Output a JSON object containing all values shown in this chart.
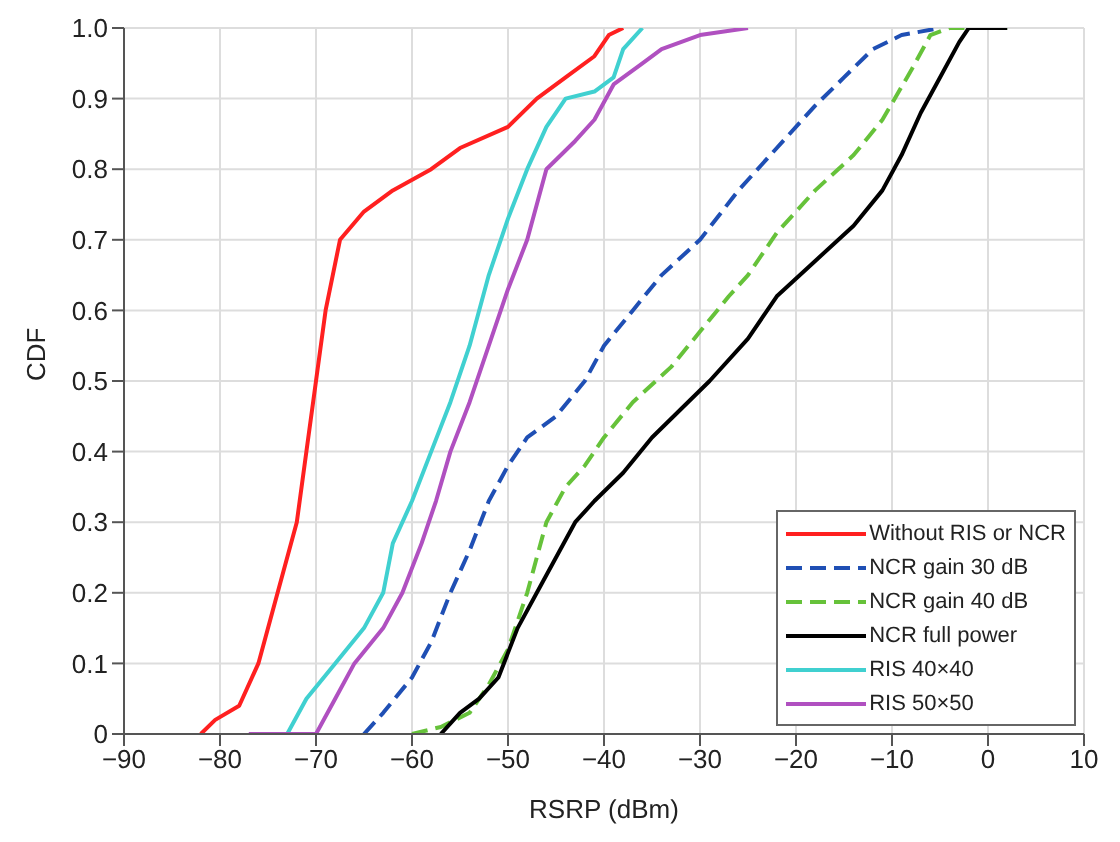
{
  "chart_data": {
    "type": "line",
    "xlabel": "RSRP (dBm)",
    "ylabel": "CDF",
    "xlim": [
      -90,
      10
    ],
    "xticks": [
      {
        "value": -90,
        "label": "−90"
      },
      {
        "value": -80,
        "label": "−80"
      },
      {
        "value": -70,
        "label": "−70"
      },
      {
        "value": -60,
        "label": "−60"
      },
      {
        "value": -50,
        "label": "−50"
      },
      {
        "value": -40,
        "label": "−40"
      },
      {
        "value": -30,
        "label": "−30"
      },
      {
        "value": -20,
        "label": "−20"
      },
      {
        "value": -10,
        "label": "−10"
      },
      0,
      10
    ],
    "ylim": [
      0,
      1
    ],
    "yticks": [
      0,
      0.1,
      0.2,
      0.3,
      0.4,
      0.5,
      0.6,
      0.7,
      0.8,
      0.9,
      {
        "value": 1,
        "label": "1.0"
      }
    ],
    "grid": true,
    "legend": "bottom right",
    "marker": "none",
    "series": [
      {
        "name": "Without RIS or NCR",
        "color": "#ff2020",
        "line_style": "solid",
        "x": [
          -82,
          -80.5,
          -78,
          -76,
          -74,
          -72,
          -71,
          -70,
          -69,
          -67.5,
          -65,
          -62,
          -58,
          -55,
          -50,
          -47,
          -44,
          -41,
          -39.5,
          -38
        ],
        "values": [
          0,
          0.02,
          0.04,
          0.1,
          0.2,
          0.3,
          0.4,
          0.5,
          0.6,
          0.7,
          0.74,
          0.77,
          0.8,
          0.83,
          0.86,
          0.9,
          0.93,
          0.96,
          0.99,
          1
        ]
      },
      {
        "name": "NCR gain 30 dB",
        "color": "#1f4fb4",
        "line_style": "dashed",
        "x": [
          -65,
          -63,
          -60,
          -58,
          -56,
          -54,
          -52,
          -50,
          -48,
          -45,
          -42,
          -40,
          -37,
          -34,
          -30,
          -26,
          -22,
          -18,
          -15,
          -12,
          -9,
          -5
        ],
        "values": [
          0,
          0.03,
          0.08,
          0.13,
          0.2,
          0.26,
          0.33,
          0.38,
          0.42,
          0.45,
          0.5,
          0.55,
          0.6,
          0.65,
          0.7,
          0.77,
          0.83,
          0.89,
          0.93,
          0.97,
          0.99,
          1
        ]
      },
      {
        "name": "NCR gain 40 dB",
        "color": "#66c23a",
        "line_style": "dashed",
        "x": [
          -60,
          -57,
          -54,
          -52,
          -50,
          -48,
          -46,
          -44,
          -42,
          -40,
          -37,
          -33,
          -30,
          -27,
          -25,
          -22,
          -18,
          -14,
          -11,
          -8,
          -6,
          -4,
          2
        ],
        "values": [
          0,
          0.01,
          0.03,
          0.07,
          0.12,
          0.2,
          0.3,
          0.35,
          0.38,
          0.42,
          0.47,
          0.52,
          0.57,
          0.62,
          0.65,
          0.71,
          0.77,
          0.82,
          0.87,
          0.94,
          0.99,
          1,
          1
        ]
      },
      {
        "name": "NCR full power",
        "color": "#000000",
        "line_style": "solid",
        "x": [
          -57,
          -55,
          -53,
          -51,
          -49,
          -47,
          -45,
          -43,
          -41,
          -38,
          -35,
          -32,
          -29,
          -25,
          -22,
          -18,
          -14,
          -11,
          -9,
          -7,
          -5,
          -3,
          -2,
          2
        ],
        "values": [
          0,
          0.03,
          0.05,
          0.08,
          0.15,
          0.2,
          0.25,
          0.3,
          0.33,
          0.37,
          0.42,
          0.46,
          0.5,
          0.56,
          0.62,
          0.67,
          0.72,
          0.77,
          0.82,
          0.88,
          0.93,
          0.98,
          1,
          1
        ]
      },
      {
        "name": "RIS 40×40",
        "color": "#40d0d0",
        "line_style": "solid",
        "x": [
          -73,
          -71,
          -68,
          -65,
          -63,
          -62,
          -60,
          -58,
          -56,
          -54,
          -52,
          -50,
          -48,
          -46,
          -44,
          -41,
          -39,
          -38,
          -36
        ],
        "values": [
          0,
          0.05,
          0.1,
          0.15,
          0.2,
          0.27,
          0.33,
          0.4,
          0.47,
          0.55,
          0.65,
          0.73,
          0.8,
          0.86,
          0.9,
          0.91,
          0.93,
          0.97,
          1
        ]
      },
      {
        "name": "RIS 50×50",
        "color": "#b050c0",
        "line_style": "solid",
        "x": [
          -77,
          -70,
          -68,
          -66,
          -63,
          -61,
          -59,
          -57.5,
          -56,
          -54,
          -52,
          -50,
          -48,
          -46,
          -43,
          -41,
          -39,
          -36,
          -34,
          -30,
          -25
        ],
        "values": [
          0,
          0,
          0.05,
          0.1,
          0.15,
          0.2,
          0.27,
          0.33,
          0.4,
          0.47,
          0.55,
          0.63,
          0.7,
          0.8,
          0.84,
          0.87,
          0.92,
          0.95,
          0.97,
          0.99,
          1
        ]
      }
    ]
  }
}
